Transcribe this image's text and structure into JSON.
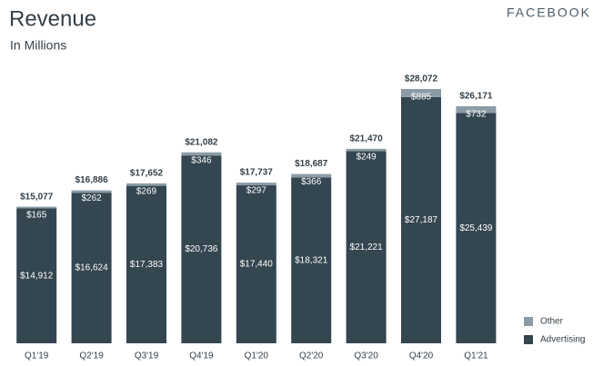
{
  "brand": "FACEBOOK",
  "chart_data": {
    "type": "stacked-bar",
    "title": "Revenue",
    "subtitle": "In Millions",
    "categories": [
      "Q1'19",
      "Q2'19",
      "Q3'19",
      "Q4'19",
      "Q1'20",
      "Q2'20",
      "Q3'20",
      "Q4'20",
      "Q1'21"
    ],
    "series": [
      {
        "name": "Advertising",
        "color": "#344650",
        "values": [
          14912,
          16624,
          17383,
          20736,
          17440,
          18321,
          21221,
          27187,
          25439
        ],
        "value_labels": [
          "$14,912",
          "$16,624",
          "$17,383",
          "$20,736",
          "$17,440",
          "$18,321",
          "$21,221",
          "$27,187",
          "$25,439"
        ]
      },
      {
        "name": "Other",
        "color": "#8b9ca6",
        "values": [
          165,
          262,
          269,
          346,
          297,
          366,
          249,
          885,
          732
        ],
        "value_labels": [
          "$165",
          "$262",
          "$269",
          "$346",
          "$297",
          "$366",
          "$249",
          "$885",
          "$732"
        ]
      }
    ],
    "totals": {
      "values": [
        15077,
        16886,
        17652,
        21082,
        17737,
        18687,
        21470,
        28072,
        26171
      ],
      "value_labels": [
        "$15,077",
        "$16,886",
        "$17,652",
        "$21,082",
        "$17,737",
        "$18,687",
        "$21,470",
        "$28,072",
        "$26,171"
      ]
    },
    "legend": "bottom-right"
  }
}
